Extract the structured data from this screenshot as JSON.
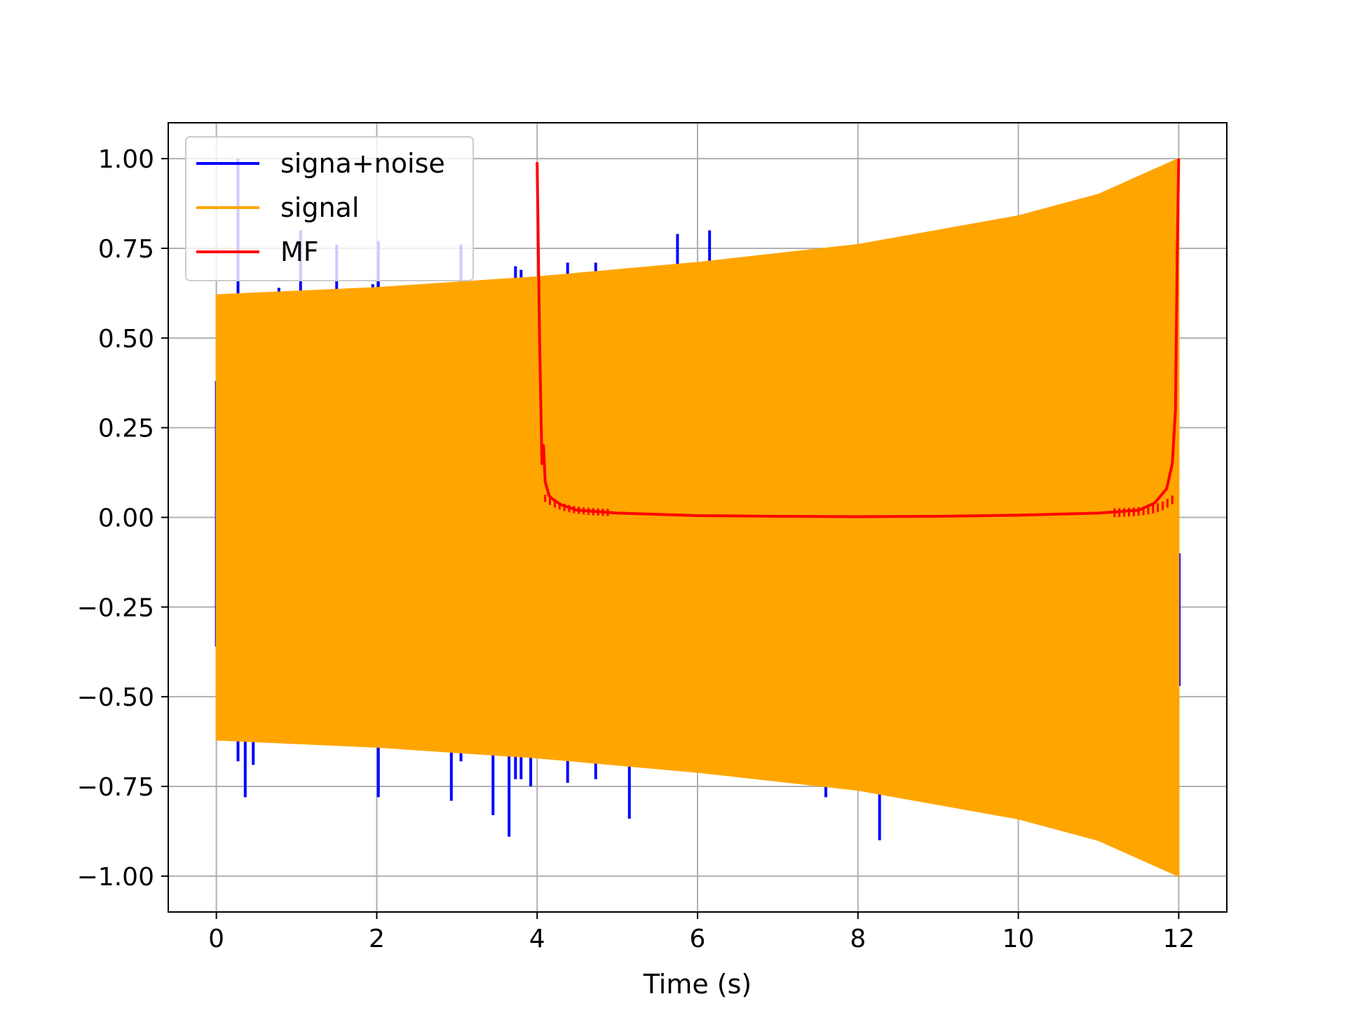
{
  "chart_data": {
    "type": "line",
    "title": "",
    "xlabel": "Time (s)",
    "ylabel": "",
    "xlim": [
      -0.6,
      12.6
    ],
    "ylim": [
      -1.1,
      1.1
    ],
    "x_ticks": [
      0,
      2,
      4,
      6,
      8,
      10,
      12
    ],
    "x_tick_labels": [
      "0",
      "2",
      "4",
      "6",
      "8",
      "10",
      "12"
    ],
    "y_ticks": [
      1.0,
      0.75,
      0.5,
      0.25,
      0.0,
      -0.25,
      -0.5,
      -0.75,
      -1.0
    ],
    "y_tick_labels": [
      "1.00",
      "0.75",
      "0.50",
      "0.25",
      "0.00",
      "−0.25",
      "−0.50",
      "−0.75",
      "−1.00"
    ],
    "grid": true,
    "legend_position": "top-left",
    "colors": {
      "signal_noise": "#0000ff",
      "signal": "#ffa500",
      "mf": "#ff0000",
      "grid": "#b0b0b0"
    },
    "series": [
      {
        "name": "signa+noise",
        "kind": "spikes",
        "description_points": [
          [
            0.0,
            0.38,
            -0.36
          ],
          [
            0.27,
            1.0,
            -0.68
          ],
          [
            0.36,
            0.62,
            -0.78
          ],
          [
            0.46,
            0.62,
            -0.69
          ],
          [
            0.78,
            0.64,
            -0.62
          ],
          [
            1.05,
            0.8,
            -0.62
          ],
          [
            1.5,
            0.76,
            -0.62
          ],
          [
            1.95,
            0.65,
            -0.63
          ],
          [
            2.02,
            0.77,
            -0.78
          ],
          [
            3.05,
            0.76,
            -0.68
          ],
          [
            2.93,
            0.65,
            -0.79
          ],
          [
            3.45,
            0.66,
            -0.83
          ],
          [
            3.65,
            0.66,
            -0.89
          ],
          [
            3.73,
            0.7,
            -0.73
          ],
          [
            3.8,
            0.69,
            -0.73
          ],
          [
            3.92,
            0.66,
            -0.75
          ],
          [
            4.38,
            0.71,
            -0.74
          ],
          [
            4.73,
            0.71,
            -0.73
          ],
          [
            5.15,
            0.68,
            -0.84
          ],
          [
            5.75,
            0.79,
            -0.7
          ],
          [
            6.15,
            0.8,
            -0.7
          ],
          [
            7.6,
            0.75,
            -0.78
          ],
          [
            8.27,
            0.72,
            -0.9
          ]
        ]
      },
      {
        "name": "signal",
        "kind": "oscillation-envelope",
        "envelope": [
          [
            0,
            0.62
          ],
          [
            2,
            0.64
          ],
          [
            4,
            0.67
          ],
          [
            6,
            0.71
          ],
          [
            8,
            0.76
          ],
          [
            10,
            0.84
          ],
          [
            11,
            0.9
          ],
          [
            12,
            1.0
          ]
        ]
      },
      {
        "name": "MF",
        "kind": "line",
        "points": [
          [
            4.0,
            0.99
          ],
          [
            4.03,
            0.5
          ],
          [
            4.06,
            0.15
          ],
          [
            4.08,
            0.2
          ],
          [
            4.1,
            0.1
          ],
          [
            4.15,
            0.06
          ],
          [
            4.2,
            0.05
          ],
          [
            4.3,
            0.035
          ],
          [
            4.5,
            0.02
          ],
          [
            5.0,
            0.012
          ],
          [
            6.0,
            0.005
          ],
          [
            7.0,
            0.003
          ],
          [
            8.0,
            0.002
          ],
          [
            9.0,
            0.003
          ],
          [
            10.0,
            0.006
          ],
          [
            11.0,
            0.012
          ],
          [
            11.5,
            0.02
          ],
          [
            11.7,
            0.04
          ],
          [
            11.85,
            0.08
          ],
          [
            11.92,
            0.15
          ],
          [
            11.96,
            0.3
          ],
          [
            11.98,
            0.7
          ],
          [
            12.0,
            1.0
          ]
        ]
      }
    ]
  }
}
